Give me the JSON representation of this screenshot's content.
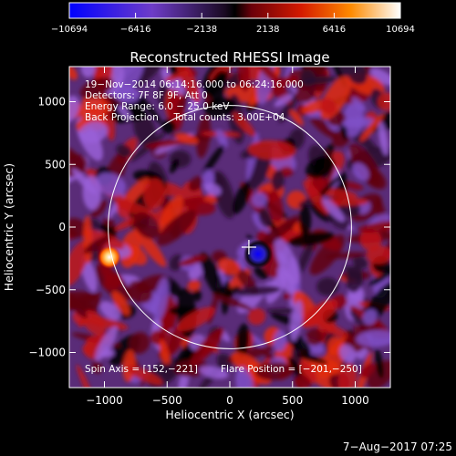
{
  "colorbar": {
    "tick_labels": [
      "−10694",
      "−6416",
      "−2138",
      "2138",
      "6416",
      "10694"
    ],
    "min": -10694,
    "max": 10694,
    "colors": [
      "#0000ff",
      "#7a3fc4",
      "#000000",
      "#b0001a",
      "#ff5a00",
      "#ffffff"
    ]
  },
  "chart_data": {
    "type": "heatmap",
    "title": "Reconstructed RHESSI Image",
    "xlabel": "Heliocentric X (arcsec)",
    "ylabel": "Heliocentric Y (arcsec)",
    "xlim": [
      -1280,
      1280
    ],
    "ylim": [
      -1280,
      1280
    ],
    "xticks": [
      -1000,
      -500,
      0,
      500,
      1000
    ],
    "yticks": [
      -1000,
      -500,
      0,
      500,
      1000
    ],
    "xtick_labels": [
      "−1000",
      "−500",
      "0",
      "500",
      "1000"
    ],
    "ytick_labels": [
      "−1000",
      "−500",
      "0",
      "500",
      "1000"
    ],
    "info_lines": [
      "19−Nov−2014 06:14:16.000 to 06:24:16.000",
      "Detectors: 7F 8F 9F, Att 0",
      "Energy Range: 6.0 − 25.0 keV",
      "Back Projection     Total counts: 3.00E+04"
    ],
    "footer_left": "Spin Axis = [152,−221]",
    "footer_right": "Flare Position = [−201,−250]",
    "solar_limb_radius": 970,
    "cross_marker": [
      152,
      -160
    ],
    "sources": [
      {
        "x": -960,
        "y": -240,
        "value": 10694,
        "kind": "bright"
      },
      {
        "x": 225,
        "y": -215,
        "value": -10694,
        "kind": "dark"
      }
    ],
    "grid": false
  },
  "date_stamp": "7−Aug−2017 07:25"
}
